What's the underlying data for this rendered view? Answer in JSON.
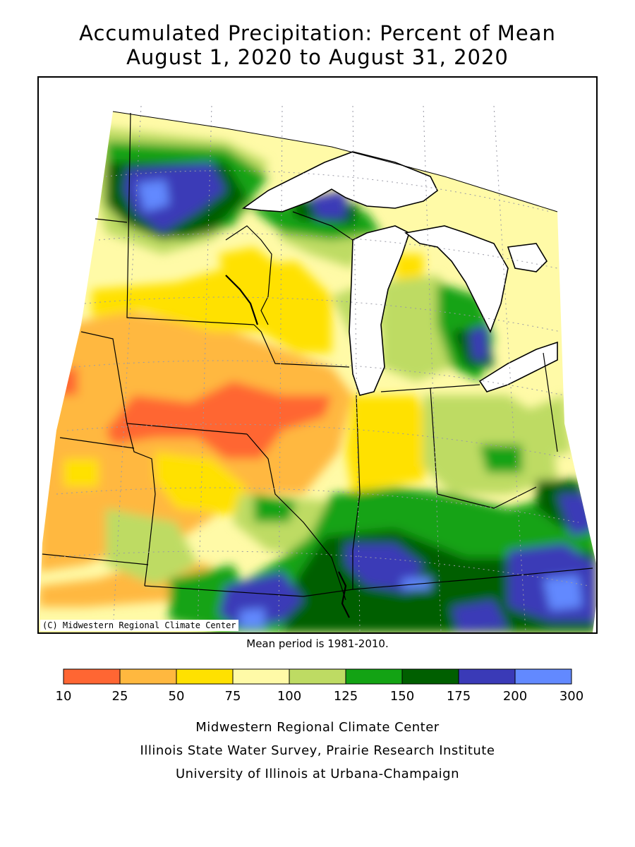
{
  "title": {
    "line1": "Accumulated Precipitation: Percent of Mean",
    "line2": "August 1, 2020 to August 31, 2020"
  },
  "map": {
    "copyright": "(C) Midwestern Regional Climate Center",
    "mean_period": "Mean period is 1981-2010."
  },
  "legend": {
    "tick_labels": [
      "10",
      "25",
      "50",
      "75",
      "100",
      "125",
      "150",
      "175",
      "200",
      "300"
    ],
    "bins": [
      {
        "from": 10,
        "to": 25,
        "color": "#ff6633"
      },
      {
        "from": 25,
        "to": 50,
        "color": "#ffb83f"
      },
      {
        "from": 50,
        "to": 75,
        "color": "#ffe100"
      },
      {
        "from": 75,
        "to": 100,
        "color": "#fffaa7"
      },
      {
        "from": 100,
        "to": 125,
        "color": "#bedb63"
      },
      {
        "from": 125,
        "to": 150,
        "color": "#13a314"
      },
      {
        "from": 150,
        "to": 175,
        "color": "#005f00"
      },
      {
        "from": 175,
        "to": 200,
        "color": "#3a3ab7"
      },
      {
        "from": 200,
        "to": 300,
        "color": "#6289ff"
      }
    ]
  },
  "credits": {
    "line1": "Midwestern Regional Climate Center",
    "line2": "Illinois State Water Survey, Prairie Research Institute",
    "line3": "University of Illinois at Urbana-Champaign"
  }
}
